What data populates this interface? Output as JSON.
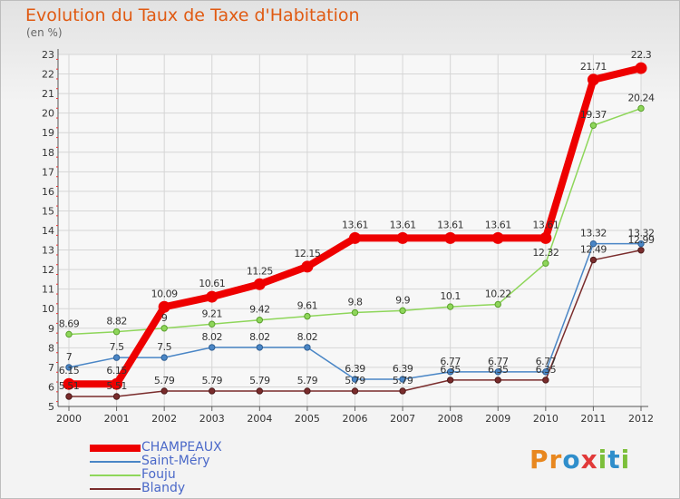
{
  "title": "Evolution du Taux de Taxe d'Habitation",
  "unit_label": "(en %)",
  "logo": {
    "text": "Proxiti",
    "letters": [
      "P",
      "r",
      "o",
      "x",
      "i",
      "t",
      "i"
    ],
    "colors": [
      "#e8871e",
      "#e8871e",
      "#2f8ecb",
      "#e13939",
      "#7cbf3a",
      "#2f8ecb",
      "#7cbf3a"
    ]
  },
  "chart_data": {
    "type": "line",
    "title": "Evolution du Taux de Taxe d'Habitation",
    "ylabel": "(en %)",
    "xlabel": "",
    "x": [
      "2000",
      "2001",
      "2002",
      "2003",
      "2004",
      "2005",
      "2006",
      "2007",
      "2008",
      "2009",
      "2010",
      "2011",
      "2012"
    ],
    "ylim": [
      5,
      23
    ],
    "yticks": [
      "5",
      "6",
      "7",
      "8",
      "9",
      "10",
      "11",
      "12",
      "13",
      "14",
      "15",
      "16",
      "17",
      "18",
      "19",
      "20",
      "21",
      "22",
      "23"
    ],
    "grid": true,
    "legend_position": "bottom-left",
    "series": [
      {
        "name": "CHAMPEAUX",
        "color": "#ee0000",
        "values": [
          6.15,
          6.15,
          10.09,
          10.61,
          11.25,
          12.15,
          13.61,
          13.61,
          13.61,
          13.61,
          13.61,
          21.71,
          22.3
        ],
        "labels": [
          "6.15",
          "6.15",
          "10.09",
          "10.61",
          "11.25",
          "12.15",
          "13.61",
          "13.61",
          "13.61",
          "13.61",
          "13.61",
          "21.71",
          "22.3"
        ]
      },
      {
        "name": "Saint-Méry",
        "color": "#4a86c6",
        "values": [
          7,
          7.5,
          7.5,
          8.02,
          8.02,
          8.02,
          6.39,
          6.39,
          6.77,
          6.77,
          6.77,
          13.32,
          13.32
        ],
        "labels": [
          "7",
          "7.5",
          "7.5",
          "8.02",
          "8.02",
          "8.02",
          "6.39",
          "6.39",
          "6.77",
          "6.77",
          "6.77",
          "13.32",
          "13.32"
        ]
      },
      {
        "name": "Fouju",
        "color": "#8ed65a",
        "values": [
          8.69,
          8.82,
          9,
          9.21,
          9.42,
          9.61,
          9.8,
          9.9,
          10.1,
          10.22,
          12.32,
          19.37,
          20.24
        ],
        "labels": [
          "8.69",
          "8.82",
          "9",
          "9.21",
          "9.42",
          "9.61",
          "9.8",
          "9.9",
          "10.1",
          "10.22",
          "12.32",
          "19.37",
          "20.24"
        ]
      },
      {
        "name": "Blandy",
        "color": "#7a2c2c",
        "values": [
          5.51,
          5.51,
          5.79,
          5.79,
          5.79,
          5.79,
          5.79,
          5.79,
          6.35,
          6.35,
          6.35,
          12.49,
          12.99
        ],
        "labels": [
          "5.51",
          "5.51",
          "5.79",
          "5.79",
          "5.79",
          "5.79",
          "5.79",
          "5.79",
          "6.35",
          "6.35",
          "6.35",
          "12.49",
          "12.99"
        ]
      }
    ]
  }
}
